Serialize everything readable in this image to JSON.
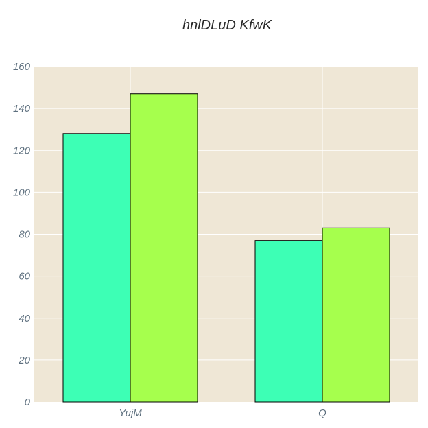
{
  "chart_data": {
    "type": "bar",
    "title": "hnlDLuD KfwK",
    "xlabel": "",
    "ylabel": "",
    "categories": [
      "YujM",
      "Q"
    ],
    "series": [
      {
        "values": [
          128,
          77
        ],
        "color": "#3dffb5"
      },
      {
        "values": [
          147,
          83
        ],
        "color": "#a6ff4d"
      }
    ],
    "ylim": [
      0,
      160
    ],
    "yticks": [
      "0",
      "20",
      "40",
      "60",
      "80",
      "100",
      "120",
      "140",
      "160"
    ],
    "grid": true,
    "legend": "none",
    "plot_background": "#efe7d6",
    "grid_color": "#ffffff",
    "bar_edge_color": "#000000"
  }
}
